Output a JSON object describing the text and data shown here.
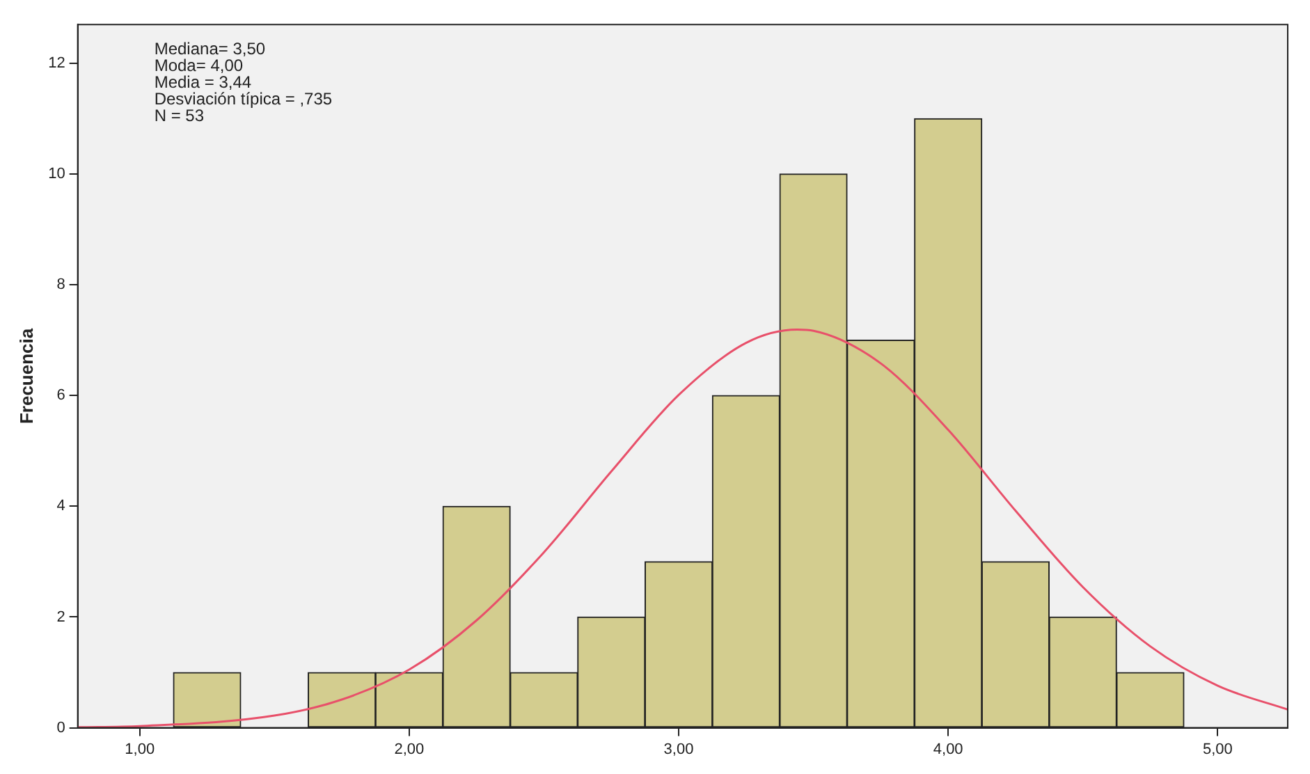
{
  "chart_data": {
    "type": "histogram",
    "ylabel": "Frecuencia",
    "annotations": [
      "Mediana= 3,50",
      "Moda= 4,00",
      "Media = 3,44",
      "Desviación típica = ,735",
      "N = 53"
    ],
    "bins": [
      1.125,
      1.375,
      1.625,
      1.875,
      2.125,
      2.375,
      2.625,
      2.875,
      3.125,
      3.375,
      3.625,
      3.875,
      4.125,
      4.375,
      4.625,
      4.875
    ],
    "series": [
      {
        "type": "histogram",
        "color": "#d3cd8f",
        "values": [
          1,
          0,
          1,
          1,
          4,
          1,
          2,
          3,
          6,
          10,
          7,
          11,
          3,
          2,
          1
        ]
      },
      {
        "type": "line",
        "color": "#e8506a",
        "x": [
          0.77,
          1.0,
          1.5,
          1.75,
          2.0,
          2.25,
          2.5,
          2.75,
          3.0,
          3.25,
          3.44,
          3.5,
          3.75,
          4.0,
          4.25,
          4.5,
          4.75,
          5.0,
          5.26
        ],
        "values": [
          0.01,
          0.03,
          0.22,
          0.51,
          1.05,
          1.94,
          3.17,
          4.63,
          6.01,
          6.95,
          7.19,
          7.17,
          6.58,
          5.38,
          3.92,
          2.54,
          1.47,
          0.76,
          0.33
        ]
      }
    ],
    "xlim": [
      0.77,
      5.26
    ],
    "xticks": [
      {
        "value": 1,
        "label": "1,00"
      },
      {
        "value": 2,
        "label": "2,00"
      },
      {
        "value": 3,
        "label": "3,00"
      },
      {
        "value": 4,
        "label": "4,00"
      },
      {
        "value": 5,
        "label": "5,00"
      }
    ],
    "ylim": [
      0,
      12.7
    ],
    "yticks": [
      0,
      2,
      4,
      6,
      8,
      10,
      12
    ],
    "grid": false,
    "legend": false
  }
}
